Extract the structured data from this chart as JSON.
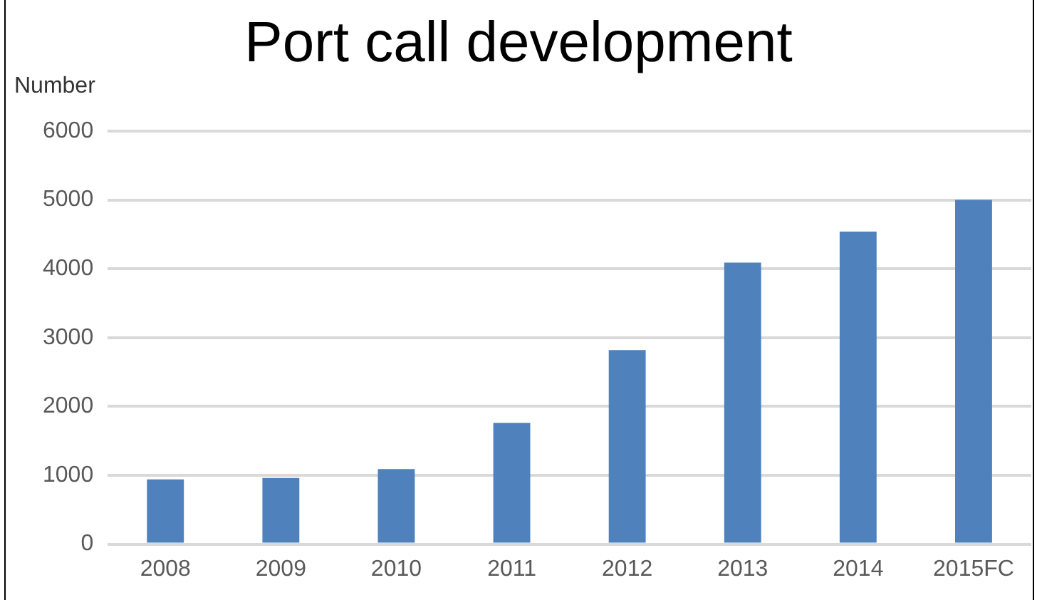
{
  "chart_data": {
    "type": "bar",
    "title": "Port call development",
    "ylabel": "Number",
    "categories": [
      "2008",
      "2009",
      "2010",
      "2011",
      "2012",
      "2013",
      "2014",
      "2015FC"
    ],
    "values": [
      940,
      960,
      1090,
      1760,
      2820,
      4090,
      4540,
      5000
    ],
    "color": "#4f81bd",
    "ylim": [
      0,
      6000
    ],
    "yticks": [
      0,
      1000,
      2000,
      3000,
      4000,
      5000,
      6000
    ],
    "grid": "y",
    "legend": false
  }
}
